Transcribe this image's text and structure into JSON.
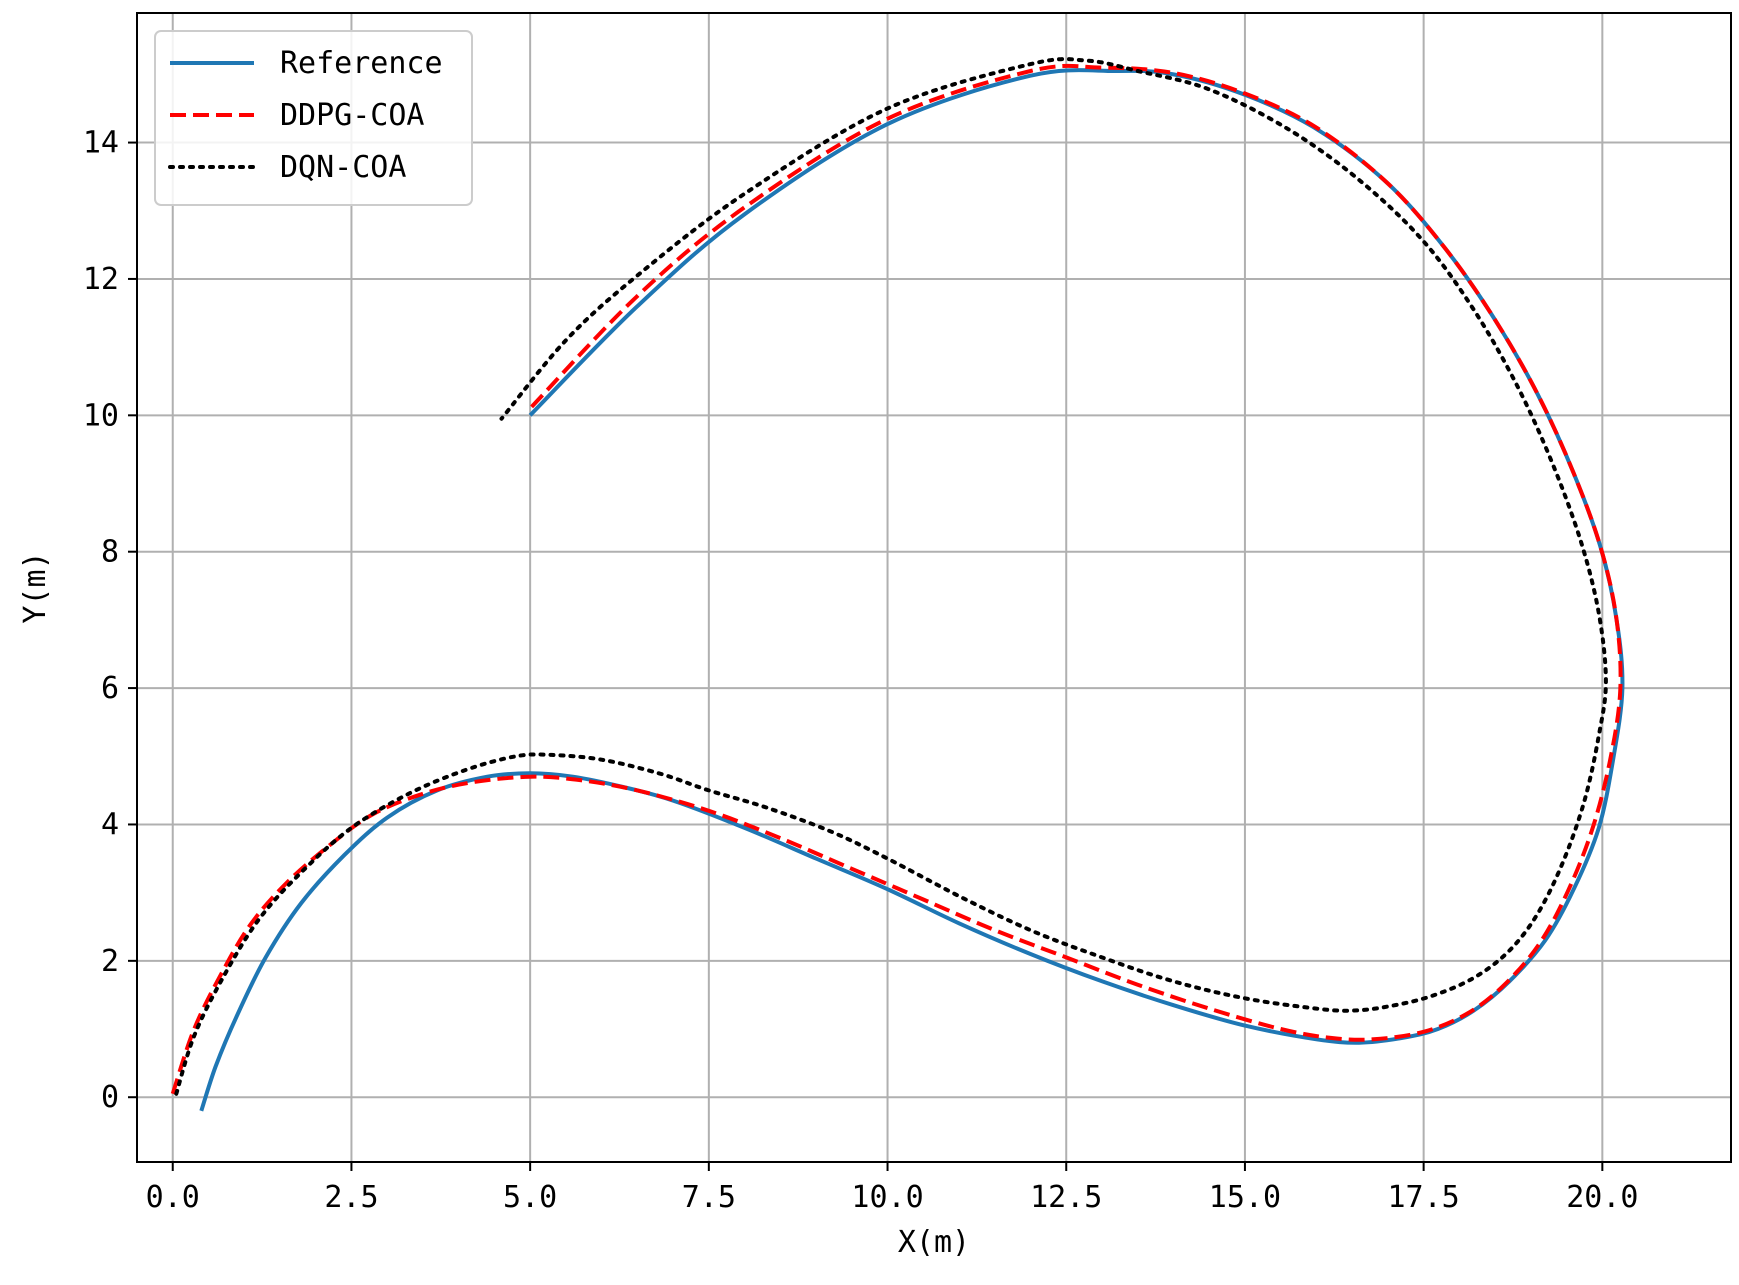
{
  "chart_data": {
    "type": "line",
    "title": "",
    "xlabel": "X(m)",
    "ylabel": "Y(m)",
    "xlim": [
      -0.5,
      21.8
    ],
    "ylim": [
      -0.95,
      15.9
    ],
    "grid": true,
    "legend_placement": "top-left",
    "xticks": [
      {
        "value": 0.0,
        "label": "0.0"
      },
      {
        "value": 2.5,
        "label": "2.5"
      },
      {
        "value": 5.0,
        "label": "5.0"
      },
      {
        "value": 7.5,
        "label": "7.5"
      },
      {
        "value": 10.0,
        "label": "10.0"
      },
      {
        "value": 12.5,
        "label": "12.5"
      },
      {
        "value": 15.0,
        "label": "15.0"
      },
      {
        "value": 17.5,
        "label": "17.5"
      },
      {
        "value": 20.0,
        "label": "20.0"
      }
    ],
    "yticks": [
      {
        "value": 0,
        "label": "0"
      },
      {
        "value": 2,
        "label": "2"
      },
      {
        "value": 4,
        "label": "4"
      },
      {
        "value": 6,
        "label": "6"
      },
      {
        "value": 8,
        "label": "8"
      },
      {
        "value": 10,
        "label": "10"
      },
      {
        "value": 12,
        "label": "12"
      },
      {
        "value": 14,
        "label": "14"
      }
    ],
    "series": [
      {
        "name": "Reference",
        "color": "#1f77b4",
        "style": "solid",
        "points": [
          [
            0.4,
            -0.2
          ],
          [
            0.6,
            0.45
          ],
          [
            0.9,
            1.2
          ],
          [
            1.3,
            2.05
          ],
          [
            1.8,
            2.85
          ],
          [
            2.4,
            3.55
          ],
          [
            3.0,
            4.1
          ],
          [
            3.7,
            4.5
          ],
          [
            4.4,
            4.7
          ],
          [
            5.0,
            4.75
          ],
          [
            5.6,
            4.7
          ],
          [
            6.3,
            4.55
          ],
          [
            7.0,
            4.35
          ],
          [
            8.0,
            3.95
          ],
          [
            9.0,
            3.5
          ],
          [
            10.0,
            3.05
          ],
          [
            11.0,
            2.55
          ],
          [
            12.0,
            2.1
          ],
          [
            13.0,
            1.7
          ],
          [
            14.0,
            1.35
          ],
          [
            15.0,
            1.05
          ],
          [
            16.0,
            0.85
          ],
          [
            16.6,
            0.8
          ],
          [
            17.2,
            0.87
          ],
          [
            17.7,
            1.0
          ],
          [
            18.2,
            1.27
          ],
          [
            18.7,
            1.7
          ],
          [
            19.2,
            2.3
          ],
          [
            19.6,
            3.05
          ],
          [
            19.95,
            3.95
          ],
          [
            20.15,
            4.95
          ],
          [
            20.28,
            6.0
          ],
          [
            20.2,
            7.0
          ],
          [
            19.98,
            8.05
          ],
          [
            19.6,
            9.15
          ],
          [
            19.1,
            10.3
          ],
          [
            18.5,
            11.4
          ],
          [
            17.8,
            12.45
          ],
          [
            17.0,
            13.4
          ],
          [
            16.0,
            14.2
          ],
          [
            15.0,
            14.7
          ],
          [
            14.0,
            15.0
          ],
          [
            13.2,
            15.05
          ],
          [
            12.0,
            14.98
          ],
          [
            10.0,
            14.27
          ],
          [
            8.0,
            12.95
          ],
          [
            6.5,
            11.6
          ],
          [
            5.0,
            10.0
          ]
        ]
      },
      {
        "name": "DDPG-COA",
        "color": "#ff0000",
        "style": "dashed",
        "points": [
          [
            0.0,
            0.05
          ],
          [
            0.3,
            1.0
          ],
          [
            0.7,
            1.85
          ],
          [
            1.1,
            2.55
          ],
          [
            1.6,
            3.15
          ],
          [
            2.2,
            3.7
          ],
          [
            2.8,
            4.15
          ],
          [
            3.5,
            4.45
          ],
          [
            4.2,
            4.62
          ],
          [
            5.0,
            4.7
          ],
          [
            5.7,
            4.65
          ],
          [
            6.5,
            4.5
          ],
          [
            7.5,
            4.2
          ],
          [
            8.5,
            3.8
          ],
          [
            9.5,
            3.35
          ],
          [
            10.5,
            2.9
          ],
          [
            11.5,
            2.45
          ],
          [
            12.5,
            2.05
          ],
          [
            13.5,
            1.65
          ],
          [
            14.5,
            1.3
          ],
          [
            15.5,
            1.0
          ],
          [
            16.2,
            0.87
          ],
          [
            16.8,
            0.85
          ],
          [
            17.5,
            0.96
          ],
          [
            18.1,
            1.22
          ],
          [
            18.6,
            1.62
          ],
          [
            19.1,
            2.22
          ],
          [
            19.5,
            2.98
          ],
          [
            19.85,
            3.9
          ],
          [
            20.1,
            4.9
          ],
          [
            20.25,
            5.95
          ],
          [
            20.2,
            7.0
          ],
          [
            19.98,
            8.05
          ],
          [
            19.6,
            9.15
          ],
          [
            19.1,
            10.3
          ],
          [
            18.5,
            11.4
          ],
          [
            17.8,
            12.45
          ],
          [
            17.0,
            13.4
          ],
          [
            16.0,
            14.22
          ],
          [
            15.0,
            14.72
          ],
          [
            14.0,
            15.02
          ],
          [
            13.0,
            15.1
          ],
          [
            12.0,
            15.05
          ],
          [
            10.0,
            14.35
          ],
          [
            8.0,
            13.05
          ],
          [
            6.5,
            11.75
          ],
          [
            5.0,
            10.1
          ]
        ]
      },
      {
        "name": "DQN-COA",
        "color": "#000000",
        "style": "dotted",
        "points": [
          [
            0.05,
            0.05
          ],
          [
            0.3,
            0.9
          ],
          [
            0.7,
            1.75
          ],
          [
            1.2,
            2.6
          ],
          [
            1.8,
            3.3
          ],
          [
            2.5,
            3.95
          ],
          [
            3.3,
            4.45
          ],
          [
            4.1,
            4.8
          ],
          [
            4.8,
            5.0
          ],
          [
            5.3,
            5.02
          ],
          [
            6.0,
            4.95
          ],
          [
            6.8,
            4.75
          ],
          [
            7.5,
            4.5
          ],
          [
            8.3,
            4.25
          ],
          [
            9.2,
            3.9
          ],
          [
            10.0,
            3.5
          ],
          [
            11.0,
            2.95
          ],
          [
            12.0,
            2.45
          ],
          [
            13.0,
            2.05
          ],
          [
            14.0,
            1.7
          ],
          [
            15.0,
            1.45
          ],
          [
            16.0,
            1.3
          ],
          [
            16.5,
            1.27
          ],
          [
            17.0,
            1.33
          ],
          [
            17.6,
            1.48
          ],
          [
            18.2,
            1.75
          ],
          [
            18.7,
            2.15
          ],
          [
            19.1,
            2.7
          ],
          [
            19.45,
            3.45
          ],
          [
            19.75,
            4.35
          ],
          [
            19.95,
            5.3
          ],
          [
            20.05,
            6.1
          ],
          [
            19.95,
            7.1
          ],
          [
            19.7,
            8.15
          ],
          [
            19.3,
            9.3
          ],
          [
            18.8,
            10.45
          ],
          [
            18.2,
            11.55
          ],
          [
            17.5,
            12.55
          ],
          [
            16.6,
            13.45
          ],
          [
            15.6,
            14.2
          ],
          [
            14.5,
            14.78
          ],
          [
            13.5,
            15.05
          ],
          [
            12.8,
            15.2
          ],
          [
            12.0,
            15.15
          ],
          [
            10.0,
            14.5
          ],
          [
            8.0,
            13.25
          ],
          [
            6.5,
            12.05
          ],
          [
            5.5,
            11.1
          ],
          [
            4.6,
            9.95
          ]
        ]
      }
    ]
  }
}
